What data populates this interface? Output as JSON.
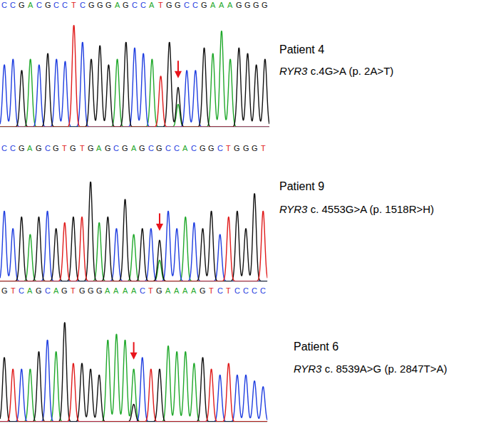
{
  "chart_data": [
    {
      "type": "chromatogram",
      "title": "Patient 4",
      "gene": "RYR3",
      "variant": "c.4G>A (p. 2A>T)",
      "sequence": "CCGACGCCTCGGGAGCCATGGCCGAAAGGGG",
      "heights": [
        55,
        60,
        50,
        60,
        55,
        65,
        60,
        58,
        90,
        75,
        60,
        72,
        55,
        60,
        75,
        70,
        65,
        60,
        45,
        75,
        35,
        50,
        50,
        70,
        65,
        85,
        60,
        70,
        65,
        55,
        60
      ],
      "mutation": {
        "index": 20,
        "base": "A",
        "height": 20
      },
      "base_colors": {
        "A": "#1fa82a",
        "C": "#1f3ee0",
        "G": "#111111",
        "T": "#e01b1b"
      },
      "xlim": [
        -0.5,
        30.5
      ],
      "ylim": [
        0,
        100
      ],
      "tick_labels": false
    },
    {
      "type": "chromatogram",
      "title": "Patient 9",
      "gene": "RYR3",
      "variant": "c. 4553G>A (p. 1518R>H)",
      "sequence": "CCGAGCGTGTGAGCGAGCGCCACGGCTGGGT",
      "heights": [
        60,
        45,
        55,
        40,
        55,
        60,
        45,
        50,
        55,
        55,
        85,
        50,
        55,
        45,
        70,
        40,
        45,
        45,
        35,
        60,
        45,
        55,
        50,
        45,
        60,
        40,
        55,
        60,
        45,
        75,
        60
      ],
      "mutation": {
        "index": 18,
        "base": "A",
        "height": 18
      },
      "base_colors": {
        "A": "#1fa82a",
        "C": "#1f3ee0",
        "G": "#111111",
        "T": "#e01b1b"
      },
      "xlim": [
        -0.5,
        30.5
      ],
      "ylim": [
        0,
        100
      ],
      "tick_labels": false
    },
    {
      "type": "chromatogram",
      "title": "Patient 6",
      "gene": "RYR3",
      "variant": "c. 8539A>G (p. 2847T>A)",
      "sequence": "GTCAGCAGTGGGAAAACTGAAAAGTCTCCCC",
      "heights": [
        55,
        45,
        45,
        45,
        60,
        70,
        60,
        85,
        50,
        50,
        45,
        40,
        70,
        75,
        70,
        45,
        55,
        45,
        45,
        65,
        60,
        60,
        50,
        55,
        45,
        40,
        50,
        40,
        40,
        35,
        30
      ],
      "mutation": {
        "index": 15,
        "base": "G",
        "height": 15
      },
      "base_colors": {
        "A": "#1fa82a",
        "C": "#1f3ee0",
        "G": "#111111",
        "T": "#e01b1b"
      },
      "xlim": [
        -0.5,
        30.5
      ],
      "ylim": [
        0,
        100
      ],
      "tick_labels": false
    }
  ]
}
